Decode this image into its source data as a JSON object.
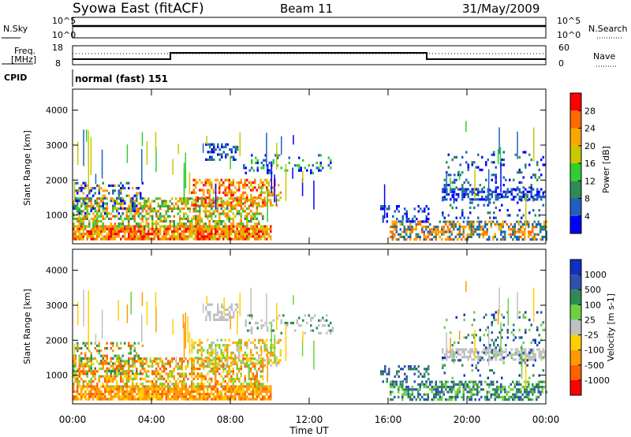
{
  "header": {
    "station": "Syowa East (fitACF)",
    "beam": "Beam 11",
    "date": "31/May/2009"
  },
  "panels": {
    "nsky": {
      "left_label": "N.Sky",
      "right_label": "N.Search",
      "tick_top": "10^5",
      "tick_bottom": "10^0"
    },
    "freq": {
      "left_label_1": "Freq.",
      "left_label_2": "[MHz]",
      "tick_top": "18",
      "tick_bottom": "8",
      "right_label": "Nave",
      "right_tick_top": "60",
      "right_tick_bottom": "0"
    },
    "cpid": {
      "label": "CPID",
      "program": "normal (fast) 151"
    }
  },
  "colors": {
    "power": [
      "#0000ff",
      "#2060c0",
      "#2e8b57",
      "#32cd32",
      "#c8c800",
      "#ffa500",
      "#ff6a00",
      "#ff0000"
    ],
    "velocity": [
      "#ff0000",
      "#ff6000",
      "#ff9a00",
      "#ffd000",
      "#c0c0c0",
      "#6ed040",
      "#2e8b57",
      "#3050b0",
      "#1030c0"
    ]
  },
  "chart_data": [
    {
      "type": "heatmap",
      "quantity": "Power",
      "title": "",
      "xlabel": "",
      "ylabel": "Slant Range [km]",
      "x_ticks": [
        "00:00",
        "04:00",
        "08:00",
        "12:00",
        "16:00",
        "20:00",
        "00:00"
      ],
      "y_ticks": [
        1000,
        2000,
        3000,
        4000
      ],
      "ylim": [
        180,
        4600
      ],
      "colorbar_label": "Power [dB]",
      "colorbar_ticks": [
        "4",
        "8",
        "12",
        "16",
        "20",
        "24",
        "28"
      ]
    },
    {
      "type": "heatmap",
      "quantity": "Velocity",
      "title": "",
      "xlabel": "Time UT",
      "ylabel": "Slant Range [km]",
      "x_ticks": [
        "00:00",
        "04:00",
        "08:00",
        "12:00",
        "16:00",
        "20:00",
        "00:00"
      ],
      "y_ticks": [
        1000,
        2000,
        3000,
        4000
      ],
      "ylim": [
        180,
        4600
      ],
      "colorbar_label": "Velocity [m s-1]",
      "colorbar_ticks": [
        "-1000",
        "-500",
        "-100",
        "-25",
        "25",
        "100",
        "500",
        "1000"
      ]
    }
  ]
}
